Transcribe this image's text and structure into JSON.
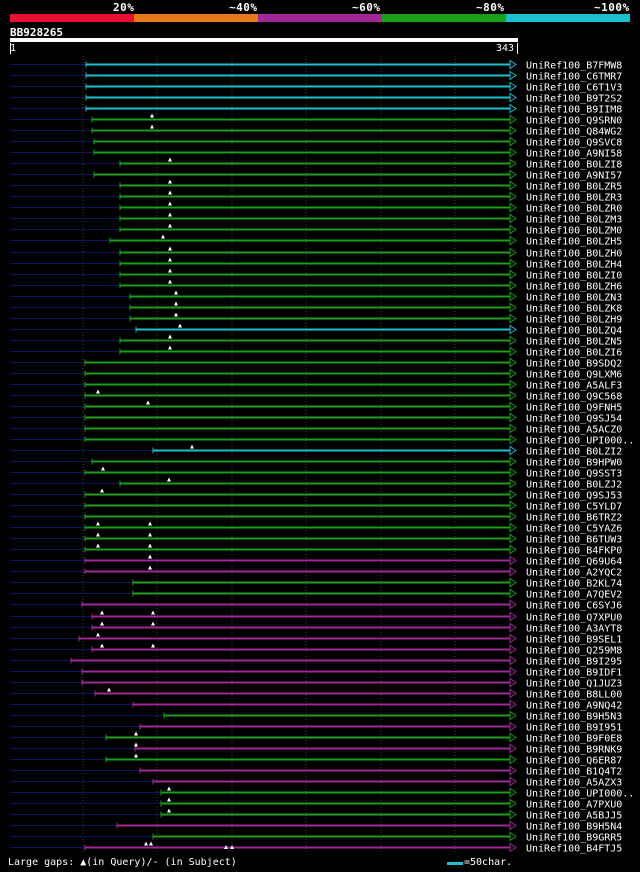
{
  "legend": [
    {
      "label": "20%",
      "color": "#e8102e"
    },
    {
      "label": "~40%",
      "color": "#e87818"
    },
    {
      "label": "~60%",
      "color": "#a02898"
    },
    {
      "label": "~80%",
      "color": "#18a018"
    },
    {
      "label": "~100%",
      "color": "#18c0d0"
    }
  ],
  "query": {
    "id": "BB928265",
    "start": "1",
    "end": "343"
  },
  "colors": {
    "dark": "#0b1560",
    "grid": "#404040"
  },
  "hits": [
    {
      "name": "UniRef100_B7FMW8",
      "s": 86,
      "c": "cyan",
      "m": []
    },
    {
      "name": "UniRef100_C6TMR7",
      "s": 86,
      "c": "cyan",
      "m": []
    },
    {
      "name": "UniRef100_C6T1V3",
      "s": 86,
      "c": "cyan",
      "m": []
    },
    {
      "name": "UniRef100_B9T2S2",
      "s": 86,
      "c": "cyan",
      "m": []
    },
    {
      "name": "UniRef100_B9IIM8",
      "s": 86,
      "c": "cyan",
      "m": []
    },
    {
      "name": "UniRef100_Q9SRN0",
      "s": 92,
      "c": "green",
      "m": [
        152
      ]
    },
    {
      "name": "UniRef100_Q84WG2",
      "s": 92,
      "c": "green",
      "m": [
        152
      ]
    },
    {
      "name": "UniRef100_Q9SVC8",
      "s": 94,
      "c": "green",
      "m": []
    },
    {
      "name": "UniRef100_A9NI58",
      "s": 94,
      "c": "green",
      "m": []
    },
    {
      "name": "UniRef100_B0LZI8",
      "s": 120,
      "c": "green",
      "m": [
        170
      ]
    },
    {
      "name": "UniRef100_A9NI57",
      "s": 94,
      "c": "green",
      "m": []
    },
    {
      "name": "UniRef100_B0LZR5",
      "s": 120,
      "c": "green",
      "m": [
        170
      ]
    },
    {
      "name": "UniRef100_B0LZR3",
      "s": 120,
      "c": "green",
      "m": [
        170
      ]
    },
    {
      "name": "UniRef100_B0LZR0",
      "s": 120,
      "c": "green",
      "m": [
        170
      ]
    },
    {
      "name": "UniRef100_B0LZM3",
      "s": 120,
      "c": "green",
      "m": [
        170
      ]
    },
    {
      "name": "UniRef100_B0LZM0",
      "s": 120,
      "c": "green",
      "m": [
        170
      ]
    },
    {
      "name": "UniRef100_B0LZH5",
      "s": 110,
      "c": "green",
      "m": [
        163
      ]
    },
    {
      "name": "UniRef100_B0LZH0",
      "s": 120,
      "c": "green",
      "m": [
        170
      ]
    },
    {
      "name": "UniRef100_B0LZH4",
      "s": 120,
      "c": "green",
      "m": [
        170
      ]
    },
    {
      "name": "UniRef100_B0LZI0",
      "s": 120,
      "c": "green",
      "m": [
        170
      ]
    },
    {
      "name": "UniRef100_B0LZH6",
      "s": 120,
      "c": "green",
      "m": [
        170
      ]
    },
    {
      "name": "UniRef100_B0LZN3",
      "s": 130,
      "c": "green",
      "m": [
        176
      ]
    },
    {
      "name": "UniRef100_B0LZK8",
      "s": 130,
      "c": "green",
      "m": [
        176
      ]
    },
    {
      "name": "UniRef100_B0LZH9",
      "s": 130,
      "c": "green",
      "m": [
        176
      ]
    },
    {
      "name": "UniRef100_B0LZQ4",
      "s": 136,
      "c": "cyan",
      "m": [
        180
      ]
    },
    {
      "name": "UniRef100_B0LZN5",
      "s": 120,
      "c": "green",
      "m": [
        170
      ]
    },
    {
      "name": "UniRef100_B0LZI6",
      "s": 120,
      "c": "green",
      "m": [
        170
      ]
    },
    {
      "name": "UniRef100_B9SDQ2",
      "s": 85,
      "c": "green",
      "m": []
    },
    {
      "name": "UniRef100_Q9LXM6",
      "s": 85,
      "c": "green",
      "m": []
    },
    {
      "name": "UniRef100_A5ALF3",
      "s": 85,
      "c": "green",
      "m": []
    },
    {
      "name": "UniRef100_Q9C568",
      "s": 85,
      "c": "green",
      "m": [
        98
      ]
    },
    {
      "name": "UniRef100_Q9FNH5",
      "s": 85,
      "c": "green",
      "m": [
        148
      ]
    },
    {
      "name": "UniRef100_Q9SJ54",
      "s": 85,
      "c": "green",
      "m": []
    },
    {
      "name": "UniRef100_A5ACZ0",
      "s": 85,
      "c": "green",
      "m": []
    },
    {
      "name": "UniRef100_UPI000..",
      "s": 85,
      "c": "green",
      "m": []
    },
    {
      "name": "UniRef100_B0LZI2",
      "s": 153,
      "c": "cyan",
      "m": [
        192
      ]
    },
    {
      "name": "UniRef100_B9HPW0",
      "s": 92,
      "c": "green",
      "m": []
    },
    {
      "name": "UniRef100_Q9SST3",
      "s": 85,
      "c": "green",
      "m": [
        103
      ]
    },
    {
      "name": "UniRef100_B0LZJ2",
      "s": 120,
      "c": "green",
      "m": [
        169
      ]
    },
    {
      "name": "UniRef100_Q9SJ53",
      "s": 85,
      "c": "green",
      "m": [
        102
      ]
    },
    {
      "name": "UniRef100_C5YLD7",
      "s": 85,
      "c": "green",
      "m": []
    },
    {
      "name": "UniRef100_B6TRZ2",
      "s": 85,
      "c": "green",
      "m": []
    },
    {
      "name": "UniRef100_C5YAZ6",
      "s": 85,
      "c": "green",
      "m": [
        98,
        150
      ]
    },
    {
      "name": "UniRef100_B6TUW3",
      "s": 85,
      "c": "green",
      "m": [
        98,
        150
      ]
    },
    {
      "name": "UniRef100_B4FKP0",
      "s": 85,
      "c": "green",
      "m": [
        98,
        150
      ]
    },
    {
      "name": "UniRef100_Q69U64",
      "s": 85,
      "c": "purple",
      "m": [
        150
      ]
    },
    {
      "name": "UniRef100_A2YQC2",
      "s": 85,
      "c": "purple",
      "m": [
        150
      ]
    },
    {
      "name": "UniRef100_B2KL74",
      "s": 133,
      "c": "green",
      "m": []
    },
    {
      "name": "UniRef100_A7QEV2",
      "s": 133,
      "c": "green",
      "m": []
    },
    {
      "name": "UniRef100_C6SYJ6",
      "s": 82,
      "c": "purple",
      "m": []
    },
    {
      "name": "UniRef100_Q7XPU0",
      "s": 92,
      "c": "purple",
      "m": [
        102,
        153
      ]
    },
    {
      "name": "UniRef100_A3AYT8",
      "s": 92,
      "c": "purple",
      "m": [
        102,
        153
      ]
    },
    {
      "name": "UniRef100_B9SEL1",
      "s": 79,
      "c": "purple",
      "m": [
        98
      ]
    },
    {
      "name": "UniRef100_Q259M8",
      "s": 92,
      "c": "purple",
      "m": [
        102,
        153
      ]
    },
    {
      "name": "UniRef100_B9I295",
      "s": 71,
      "c": "purple",
      "m": []
    },
    {
      "name": "UniRef100_B9IDF1",
      "s": 82,
      "c": "purple",
      "m": []
    },
    {
      "name": "UniRef100_Q1JUZ3",
      "s": 82,
      "c": "purple",
      "m": []
    },
    {
      "name": "UniRef100_B8LL00",
      "s": 95,
      "c": "purple",
      "m": [
        109
      ]
    },
    {
      "name": "UniRef100_A9NQ42",
      "s": 133,
      "c": "purple",
      "m": []
    },
    {
      "name": "UniRef100_B9H5N3",
      "s": 164,
      "c": "green",
      "m": []
    },
    {
      "name": "UniRef100_B9I951",
      "s": 140,
      "c": "purple",
      "m": []
    },
    {
      "name": "UniRef100_B9F0E8",
      "s": 106,
      "c": "green",
      "m": [
        136
      ]
    },
    {
      "name": "UniRef100_B9RNK9",
      "s": 135,
      "c": "purple",
      "m": [
        136
      ]
    },
    {
      "name": "UniRef100_Q6ER87",
      "s": 106,
      "c": "green",
      "m": [
        136
      ]
    },
    {
      "name": "UniRef100_B1Q4T2",
      "s": 140,
      "c": "purple",
      "m": []
    },
    {
      "name": "UniRef100_A5AZX3",
      "s": 153,
      "c": "purple",
      "m": []
    },
    {
      "name": "UniRef100_UPI000..",
      "s": 161,
      "c": "green",
      "m": [
        169
      ]
    },
    {
      "name": "UniRef100_A7PXU0",
      "s": 161,
      "c": "green",
      "m": [
        169
      ]
    },
    {
      "name": "UniRef100_A5BJJ5",
      "s": 161,
      "c": "green",
      "m": [
        169
      ]
    },
    {
      "name": "UniRef100_B9H5N4",
      "s": 117,
      "c": "purple",
      "m": []
    },
    {
      "name": "UniRef100_B9GRR5",
      "s": 153,
      "c": "green",
      "m": []
    },
    {
      "name": "UniRef100_B4FTJ5",
      "s": 85,
      "c": "purple",
      "m": [
        146,
        151
      ]
    }
  ],
  "footer": {
    "gaps_text": "Large gaps: ▲(in Query)/- (in Subject)",
    "scale_text": "=50char."
  }
}
